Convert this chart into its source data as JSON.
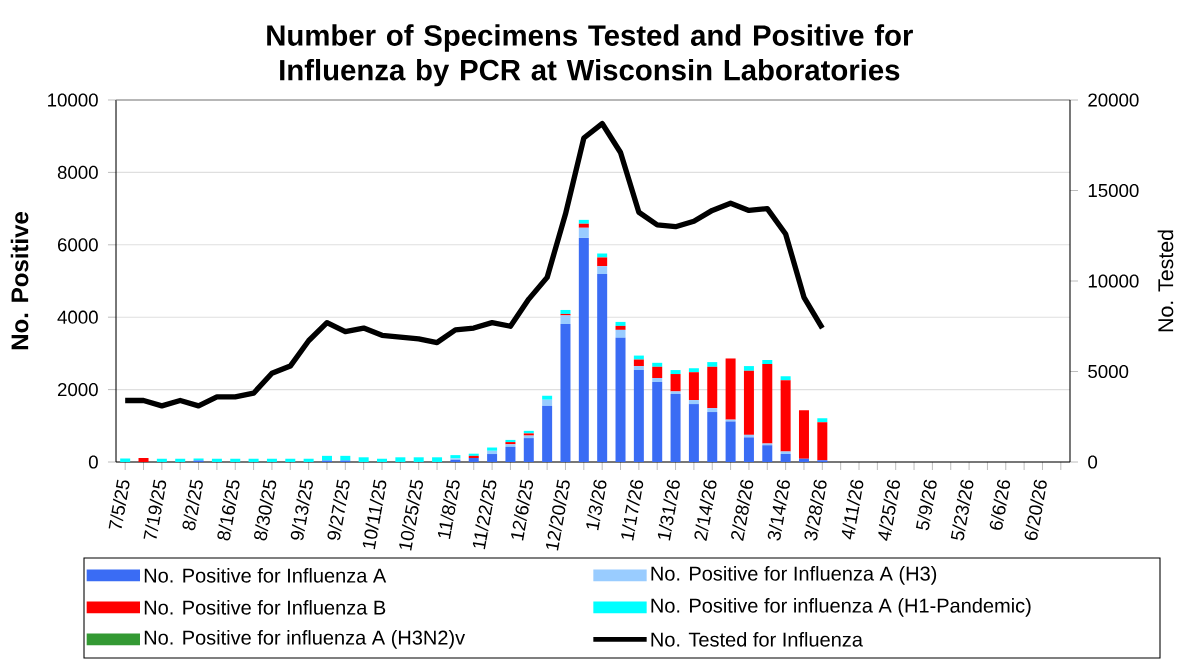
{
  "chart_data": {
    "type": "bar",
    "title": "Number of Specimens Tested and Positive for Influenza by PCR at Wisconsin Laboratories",
    "ylabel": "No. Positive",
    "y2label": "No. Tested",
    "categories": [
      "7/5/25",
      null,
      "7/19/25",
      null,
      "8/2/25",
      null,
      "8/16/25",
      null,
      "8/30/25",
      null,
      "9/13/25",
      null,
      "9/27/25",
      null,
      "10/11/25",
      null,
      "10/25/25",
      null,
      "11/8/25",
      null,
      "11/22/25",
      null,
      "12/6/25",
      null,
      "12/20/25",
      null,
      "1/3/26",
      null,
      "1/17/26",
      null,
      "1/31/26",
      null,
      "2/14/26",
      null,
      "2/28/26",
      null,
      "3/14/26",
      null,
      "3/28/26",
      null,
      "4/11/26",
      null,
      "4/25/26",
      null,
      "5/9/26",
      null,
      "5/23/26",
      null,
      "6/6/26",
      null,
      "6/20/26",
      null
    ],
    "stacked": true,
    "grid": "y",
    "legend": "bottom",
    "ylim": [
      0,
      10000
    ],
    "yticks": [
      0,
      2000,
      4000,
      6000,
      8000,
      10000
    ],
    "y2lim": [
      0,
      20000
    ],
    "y2ticks": [
      0,
      5000,
      10000,
      15000,
      20000
    ],
    "series": [
      {
        "name": "No. Positive for Influenza A",
        "color": "#3a6cf4",
        "values": [
          0,
          0,
          0,
          0,
          40,
          0,
          0,
          0,
          0,
          0,
          0,
          40,
          40,
          0,
          0,
          0,
          0,
          0,
          60,
          110,
          220,
          420,
          660,
          1550,
          3810,
          6190,
          5190,
          3430,
          2540,
          2210,
          1880,
          1600,
          1380,
          1120,
          680,
          460,
          220,
          90,
          50,
          null,
          null,
          null,
          null,
          null,
          null,
          null,
          null,
          null,
          null,
          null,
          null,
          null
        ]
      },
      {
        "name": "No. Positive for Influenza A (H3)",
        "color": "#99ccff",
        "values": [
          0,
          0,
          0,
          0,
          0,
          0,
          0,
          0,
          0,
          0,
          0,
          0,
          0,
          0,
          0,
          0,
          0,
          0,
          40,
          0,
          90,
          70,
          70,
          170,
          240,
          280,
          220,
          220,
          110,
          110,
          70,
          110,
          110,
          50,
          70,
          50,
          70,
          0,
          0,
          null,
          null,
          null,
          null,
          null,
          null,
          null,
          null,
          null,
          null,
          null,
          null,
          null
        ]
      },
      {
        "name": "No. Positive for Influenza B",
        "color": "#ff0000",
        "values": [
          0,
          110,
          0,
          0,
          0,
          0,
          0,
          0,
          0,
          0,
          0,
          0,
          0,
          0,
          0,
          0,
          0,
          0,
          0,
          60,
          0,
          60,
          60,
          0,
          40,
          110,
          240,
          110,
          180,
          310,
          480,
          770,
          1140,
          1690,
          1770,
          2200,
          1970,
          1340,
          1050,
          null,
          null,
          null,
          null,
          null,
          null,
          null,
          null,
          null,
          null,
          null,
          null,
          null
        ]
      },
      {
        "name": "No. Positive for influenza A (H1-Pandemic)",
        "color": "#00ffff",
        "values": [
          100,
          0,
          90,
          90,
          60,
          90,
          90,
          90,
          90,
          90,
          90,
          130,
          130,
          130,
          90,
          130,
          130,
          130,
          90,
          60,
          90,
          60,
          70,
          110,
          110,
          110,
          110,
          110,
          110,
          110,
          110,
          110,
          130,
          0,
          130,
          110,
          110,
          0,
          110,
          null,
          null,
          null,
          null,
          null,
          null,
          null,
          null,
          null,
          null,
          null,
          null,
          null
        ]
      },
      {
        "name": "No. Positive for influenza A (H3N2)v",
        "color": "#339933",
        "values": [
          0,
          0,
          0,
          0,
          0,
          0,
          0,
          0,
          0,
          0,
          0,
          0,
          0,
          0,
          0,
          0,
          0,
          0,
          0,
          0,
          0,
          0,
          0,
          0,
          0,
          0,
          0,
          0,
          0,
          0,
          0,
          0,
          0,
          0,
          0,
          0,
          0,
          0,
          0,
          null,
          null,
          null,
          null,
          null,
          null,
          null,
          null,
          null,
          null,
          null,
          null,
          null
        ]
      },
      {
        "name": "No. Tested for Influenza",
        "color": "#000000",
        "type": "line",
        "axis": "y2",
        "values": [
          3400,
          3400,
          3100,
          3400,
          3100,
          3600,
          3600,
          3800,
          4900,
          5300,
          6700,
          7700,
          7200,
          7400,
          7000,
          6900,
          6800,
          6600,
          7300,
          7400,
          7700,
          7500,
          9000,
          10200,
          13700,
          17900,
          18700,
          17100,
          13800,
          13100,
          13000,
          13300,
          13900,
          14300,
          13900,
          14000,
          12600,
          9100,
          7400,
          null,
          null,
          null,
          null,
          null,
          null,
          null,
          null,
          null,
          null,
          null,
          null,
          null
        ]
      }
    ]
  }
}
